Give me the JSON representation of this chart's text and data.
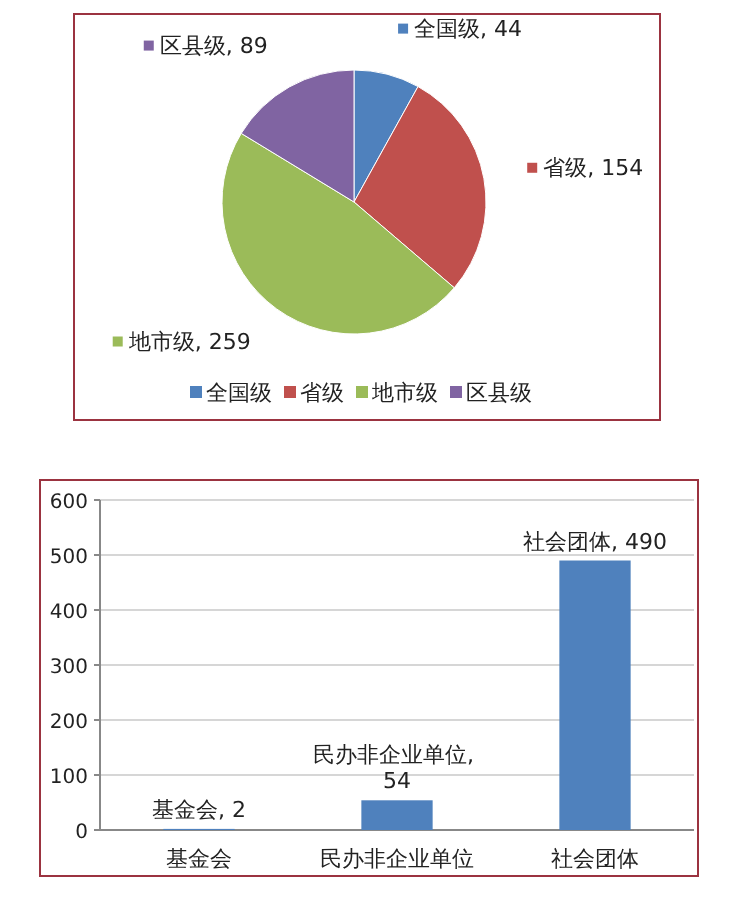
{
  "chart_data": [
    {
      "type": "pie",
      "categories": [
        "全国级",
        "省级",
        "地市级",
        "区县级"
      ],
      "values": [
        44,
        154,
        259,
        89
      ],
      "colors": [
        "#4f81bd",
        "#c0504d",
        "#9bbb59",
        "#8064a2"
      ],
      "value_labels": [
        "全国级, 44",
        "省级, 154",
        "地市级, 259",
        "区县级, 89"
      ],
      "legend": "bottom"
    },
    {
      "type": "bar",
      "categories": [
        "基金会",
        "民办非企业单位",
        "社会团体"
      ],
      "values": [
        2,
        54,
        490
      ],
      "color": "#4f81bd",
      "value_labels": [
        "基金会, 2",
        "民办非企业单位, 54",
        "社会团体, 490"
      ],
      "ylim": [
        0,
        600
      ],
      "yticks": [
        0,
        100,
        200,
        300,
        400,
        500,
        600
      ],
      "grid": "y"
    }
  ]
}
